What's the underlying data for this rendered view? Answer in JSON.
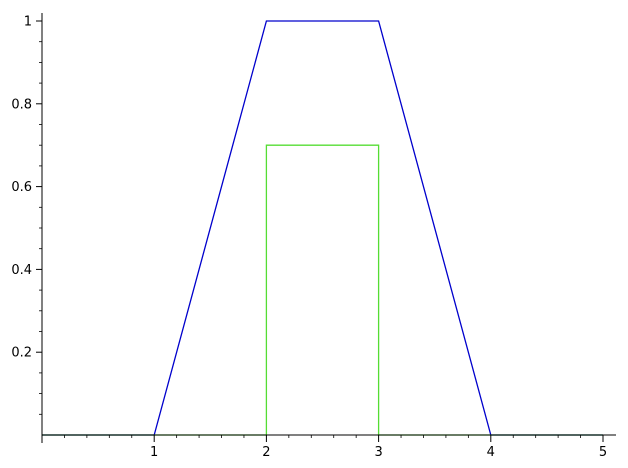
{
  "chart_data": {
    "type": "line",
    "title": "",
    "xlabel": "",
    "ylabel": "",
    "xlim": [
      0,
      5
    ],
    "ylim": [
      0,
      1
    ],
    "x_ticks": [
      1,
      2,
      3,
      4,
      5
    ],
    "x_tick_labels": [
      "1",
      "2",
      "3",
      "4",
      "5"
    ],
    "x_minor_step": 0.2,
    "y_ticks": [
      0.2,
      0.4,
      0.6,
      0.8,
      1
    ],
    "y_tick_labels": [
      "0.2",
      "0.4",
      "0.6",
      "0.8",
      "1"
    ],
    "y_minor_step": 0.05,
    "grid": false,
    "series": [
      {
        "color": "#0000cc",
        "x": [
          0,
          1,
          2,
          3,
          4,
          5
        ],
        "y": [
          0,
          0,
          1,
          1,
          0,
          0
        ]
      },
      {
        "color": "#55dd33",
        "x": [
          0,
          2,
          2,
          3,
          3,
          5
        ],
        "y": [
          0,
          0,
          0.7,
          0.7,
          0,
          0
        ]
      }
    ]
  }
}
